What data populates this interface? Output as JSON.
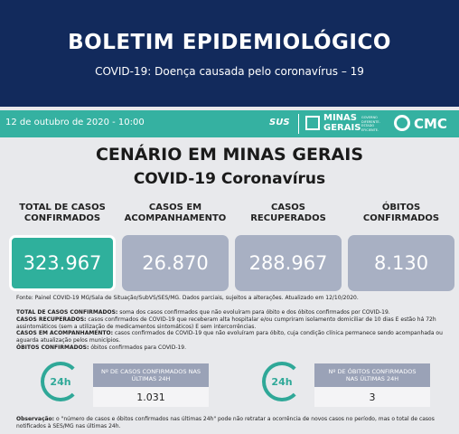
{
  "header": {
    "title": "BOLETIM EPIDEMIOLÓGICO",
    "subtitle": "COVID-19: Doença causada pelo coronavírus – 19"
  },
  "bar": {
    "date": "12 de outubro de 2020 - 10:00",
    "logos": {
      "sus": "SUS",
      "minas": "MINAS",
      "gerais": "GERAIS",
      "gov": "GOVERNO DIFERENTE. ESTADO EFICIENTE.",
      "cmc": "CMC"
    }
  },
  "scenario": {
    "title": "CENÁRIO EM MINAS GERAIS",
    "subtitle": "COVID-19 Coronavírus"
  },
  "cards": [
    {
      "label": "TOTAL DE CASOS CONFIRMADOS",
      "value": "323.967"
    },
    {
      "label": "CASOS EM ACOMPANHAMENTO",
      "value": "26.870"
    },
    {
      "label": "CASOS RECUPERADOS",
      "value": "288.967"
    },
    {
      "label": "ÓBITOS CONFIRMADOS",
      "value": "8.130"
    }
  ],
  "source": "Fonte: Painel COVID-19 MG/Sala de Situação/SubVS/SES/MG. Dados parciais, sujeitos a alterações. Atualizado em 12/10/2020.",
  "definitions": [
    {
      "term": "TOTAL DE CASOS CONFIRMADOS:",
      "text": "soma dos casos confirmados que não evoluíram para óbito e dos óbitos confirmados por COVID-19."
    },
    {
      "term": "CASOS RECUPERADOS:",
      "text": "casos confirmados de COVID-19 que receberam alta hospitalar e/ou cumpriram isolamento domiciliar de 10 dias E estão há 72h assintomáticos (sem a utilização de medicamentos sintomáticos) E sem intercorrências."
    },
    {
      "term": "CASOS EM ACOMPANHAMENTO:",
      "text": "casos confirmados de COVID-19 que não evoluíram para óbito, cuja condição clínica permanece sendo acompanhada ou aguarda atualização pelos municípios."
    },
    {
      "term": "ÓBITOS CONFIRMADOS:",
      "text": "óbitos confirmados para COVID-19."
    }
  ],
  "last24": [
    {
      "icon": "24h",
      "label": "Nº DE CASOS CONFIRMADOS NAS ÚLTIMAS 24H",
      "value": "1.031"
    },
    {
      "icon": "24h",
      "label": "Nº DE ÓBITOS CONFIRMADOS NAS ÚLTIMAS 24H",
      "value": "3"
    }
  ],
  "note": {
    "term": "Observação:",
    "text": "o \"número de casos e óbitos confirmados nas últimas 24h\" pode não retratar a ocorrência de novos casos no período, mas o total de casos notificados à SES/MG nas últimas 24h."
  }
}
